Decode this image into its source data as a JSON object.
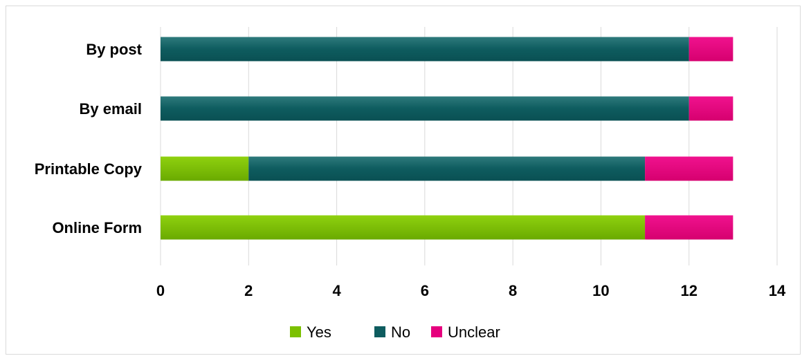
{
  "chart_data": {
    "type": "bar",
    "orientation": "horizontal",
    "stacked": true,
    "categories": [
      "By post",
      "By email",
      "Printable Copy",
      "Online Form"
    ],
    "series": [
      {
        "name": "Yes",
        "color": "#7bc000",
        "values": [
          0,
          0,
          2,
          11
        ]
      },
      {
        "name": "No",
        "color": "#0e5c5f",
        "values": [
          12,
          12,
          9,
          0
        ]
      },
      {
        "name": "Unclear",
        "color": "#e6007e",
        "values": [
          1,
          1,
          2,
          2
        ]
      }
    ],
    "xlim": [
      0,
      14
    ],
    "xticks": [
      "0",
      "2",
      "4",
      "6",
      "8",
      "10",
      "12",
      "14"
    ],
    "xtick_values": [
      0,
      2,
      4,
      6,
      8,
      10,
      12,
      14
    ],
    "grid": "vertical",
    "legend_position": "bottom"
  }
}
